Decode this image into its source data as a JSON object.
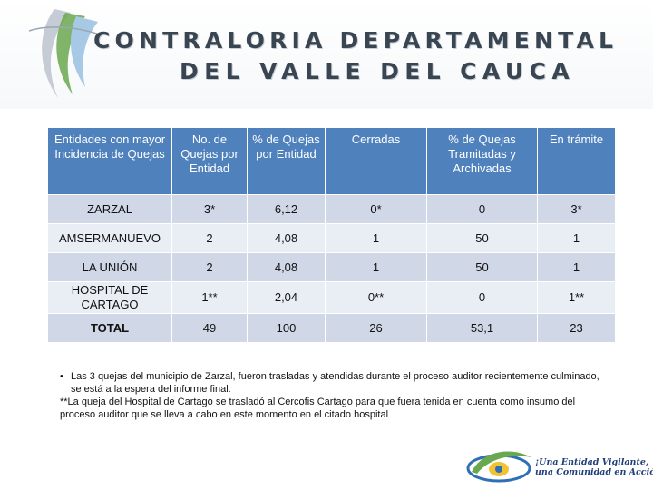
{
  "header": {
    "title_line1": "CONTRALORIA DEPARTAMENTAL",
    "title_line2": "DEL VALLE DEL CAUCA"
  },
  "table": {
    "columns": [
      "Entidades con mayor Incidencia de Quejas",
      "No. de Quejas por Entidad",
      "% de Quejas por Entidad",
      "Cerradas",
      "% de Quejas Tramitadas y Archivadas",
      "En trámite"
    ],
    "rows": [
      [
        "ZARZAL",
        "3*",
        "6,12",
        "0*",
        "0",
        "3*"
      ],
      [
        "AMSERMANUEVO",
        "2",
        "4,08",
        "1",
        "50",
        "1"
      ],
      [
        "LA UNIÓN",
        "2",
        "4,08",
        "1",
        "50",
        "1"
      ],
      [
        "HOSPITAL DE CARTAGO",
        "1**",
        "2,04",
        "0**",
        "0",
        "1**"
      ],
      [
        "TOTAL",
        "49",
        "100",
        "26",
        "53,1",
        "23"
      ]
    ]
  },
  "notes": {
    "bullet": "•",
    "note1": "Las 3 quejas del municipio de Zarzal, fueron trasladas y atendidas durante el proceso auditor recientemente culminado, se está a la espera del informe final.",
    "note2": "**La queja del Hospital de Cartago se trasladó al Cercofis Cartago para que fuera tenida en cuenta como insumo del proceso auditor que se lleva a cabo en este momento en el citado hospital"
  },
  "footer": {
    "slogan_line1": "¡Una Entidad Vigilante,",
    "slogan_line2": "una Comunidad en Acción!"
  },
  "colors": {
    "header_fill": "#4f81bd",
    "row_odd": "#d0d8e8",
    "row_even": "#e9edf4",
    "title_text": "#3a4552",
    "slogan_text": "#1f3f7a"
  },
  "icons": {
    "header_decoration": "swoosh-logo-icon",
    "footer_logo": "contraloria-emblem-icon"
  }
}
